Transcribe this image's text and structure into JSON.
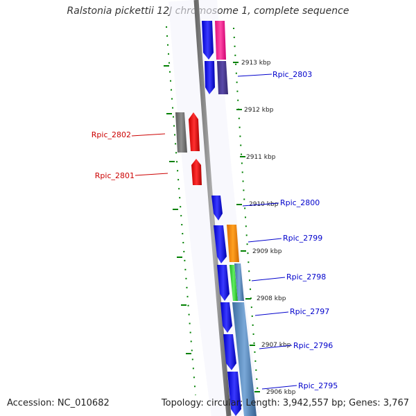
{
  "title": "Ralstonia pickettii 12J chromosome 1, complete sequence",
  "footer": {
    "accession": "Accession: NC_010682",
    "topology": "Topology: circular; Length: 3,942,557 bp; Genes: 3,767"
  },
  "colors": {
    "minus_strand_label": "#cc0000",
    "plus_strand_label": "#0000cc",
    "backbone": "#808080",
    "tick": "#008000"
  },
  "kbp_labels": [
    "2913 kbp",
    "2912 kbp",
    "2911 kbp",
    "2910 kbp",
    "2909 kbp",
    "2908 kbp",
    "2907 kbp",
    "2906 kbp"
  ],
  "genes": [
    {
      "label": "Rpic_2803",
      "strand": "plus"
    },
    {
      "label": "Rpic_2802",
      "strand": "minus"
    },
    {
      "label": "Rpic_2801",
      "strand": "minus"
    },
    {
      "label": "Rpic_2800",
      "strand": "plus"
    },
    {
      "label": "Rpic_2799",
      "strand": "plus"
    },
    {
      "label": "Rpic_2798",
      "strand": "plus"
    },
    {
      "label": "Rpic_2797",
      "strand": "plus"
    },
    {
      "label": "Rpic_2796",
      "strand": "plus"
    },
    {
      "label": "Rpic_2795",
      "strand": "plus"
    }
  ]
}
